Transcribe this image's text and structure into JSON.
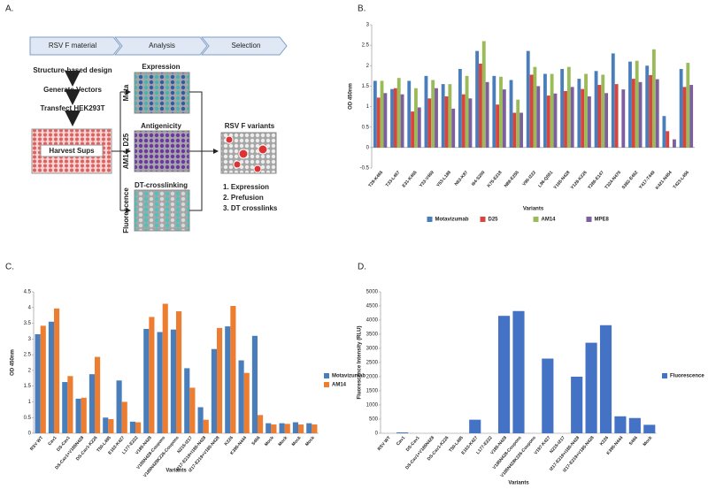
{
  "panel_labels": [
    "A.",
    "B.",
    "C.",
    "D."
  ],
  "diagram": {
    "headers": [
      "RSV F material",
      "Analysis",
      "Selection"
    ],
    "steps": [
      "Structure-based design",
      "Generate Vectors",
      "Transfect HEK293T",
      "Harvest Sups"
    ],
    "assays": [
      {
        "title": "Expression",
        "side": "Mota"
      },
      {
        "title": "Antigenicity",
        "side": "AM14, D25"
      },
      {
        "title": "DT-crosslinking",
        "side": "Fluorescence"
      }
    ],
    "result": "RSV F variants",
    "criteria": [
      "1. Expression",
      "2. Prefusion",
      "3. DT crosslinks"
    ]
  },
  "chart_data": [
    {
      "type": "bar",
      "y_label": "OD 450nm",
      "x_label": "Variants",
      "legend": "bottom",
      "categories": [
        "T29-K465",
        "T33-L467",
        "E31-K465",
        "Y33-V469",
        "Y53-L188",
        "N63-K87",
        "I64-S200",
        "K75-E218",
        "N88-E255",
        "V90-I222",
        "L96-Q551",
        "Y165-N428",
        "Y128-K226",
        "Y286-E147",
        "T324-N470",
        "S382-E462",
        "Y417-T449",
        "K421-N454",
        "T423-L456"
      ],
      "series": [
        {
          "name": "Motavizumab",
          "color": "#4a7ebb",
          "values": [
            1.63,
            1.43,
            1.63,
            1.75,
            1.55,
            1.92,
            2.36,
            1.75,
            1.65,
            2.36,
            1.8,
            1.92,
            1.68,
            1.87,
            2.3,
            2.1,
            2.0,
            0.77,
            1.92
          ]
        },
        {
          "name": "D25",
          "color": "#d9443c",
          "values": [
            1.22,
            1.45,
            0.88,
            1.2,
            1.25,
            1.3,
            2.05,
            1.05,
            0.85,
            1.78,
            1.27,
            1.38,
            1.43,
            1.53,
            1.55,
            1.68,
            1.77,
            0.4,
            1.48
          ]
        },
        {
          "name": "AM14",
          "color": "#9bbb59",
          "values": [
            1.63,
            1.7,
            1.45,
            1.65,
            1.55,
            1.75,
            2.6,
            1.73,
            1.17,
            1.97,
            1.8,
            1.97,
            1.8,
            1.78,
            0,
            2.12,
            2.4,
            0,
            2.07
          ]
        },
        {
          "name": "MPE8",
          "color": "#7d5fa0",
          "values": [
            1.33,
            1.3,
            0.98,
            1.45,
            0.95,
            1.2,
            1.6,
            1.42,
            0.85,
            1.5,
            1.32,
            1.48,
            1.25,
            1.33,
            1.42,
            1.6,
            1.67,
            0.2,
            1.53
          ]
        }
      ],
      "ylim": [
        -0.5,
        3
      ],
      "yticks": [
        -0.5,
        0,
        0.5,
        1,
        1.5,
        2,
        2.5,
        3
      ],
      "grid": false
    },
    {
      "type": "bar",
      "y_label": "OD 450nm",
      "x_label": "Variants",
      "legend": "right",
      "categories": [
        "RSV WT",
        "Cav1",
        "DS-Cav1",
        "DS-Cav1+V185N428",
        "DS-Cav1-K226",
        "T50-L495",
        "E163-K427",
        "L177-E222",
        "V185-N428",
        "V185N428-Coupons",
        "V185N428K226-Coupons",
        "N215-I217",
        "I217-E219+I185-N428",
        "I217-E219+V185-N428",
        "K226",
        "K395-N444",
        "S466",
        "Mock",
        "Mock",
        "Mock",
        "Mock"
      ],
      "series": [
        {
          "name": "Motavizumab",
          "color": "#4a7ebb",
          "values": [
            3.15,
            3.55,
            1.63,
            1.1,
            1.88,
            0.5,
            1.68,
            0.37,
            3.32,
            3.22,
            3.3,
            2.07,
            0.83,
            2.68,
            3.4,
            2.32,
            3.1,
            0.32,
            0.32,
            0.35,
            0.32
          ]
        },
        {
          "name": "AM14",
          "color": "#ed7d31",
          "values": [
            3.42,
            3.97,
            1.82,
            1.13,
            2.43,
            0.45,
            1.0,
            0.35,
            3.7,
            4.12,
            3.88,
            1.45,
            0.43,
            3.35,
            4.05,
            1.92,
            0.58,
            0.28,
            0.3,
            0.28,
            0.28
          ]
        }
      ],
      "ylim": [
        0,
        4.5
      ],
      "yticks": [
        0,
        0.5,
        1,
        1.5,
        2,
        2.5,
        3,
        3.5,
        4,
        4.5
      ],
      "grid": false
    },
    {
      "type": "bar",
      "y_label": "Fluorescence Intensity (RLU)",
      "x_label": "Variants",
      "legend": "right",
      "categories": [
        "RSV WT",
        "Cav1",
        "DS-Cav1",
        "DS-Cav1+V185N428",
        "DS-Cav1-K226",
        "T50-L495",
        "E163-K427",
        "L177-E222",
        "V185-N428",
        "V185N428-Coupons",
        "V185N428K226-Coupons",
        "V197-K427",
        "N215-I217",
        "I217-E219+I185-N428",
        "I217-E219+V185-N428",
        "K226",
        "K395-N444",
        "S466",
        "Mock"
      ],
      "series": [
        {
          "name": "Fluorescence",
          "color": "#4472c4",
          "values": [
            0,
            30,
            0,
            0,
            0,
            0,
            480,
            0,
            4150,
            4320,
            0,
            2640,
            0,
            2000,
            3200,
            3820,
            600,
            540,
            300
          ]
        }
      ],
      "ylim": [
        0,
        5000
      ],
      "yticks": [
        0,
        500,
        1000,
        1500,
        2000,
        2500,
        3000,
        3500,
        4000,
        4500,
        5000
      ],
      "grid": false
    }
  ]
}
